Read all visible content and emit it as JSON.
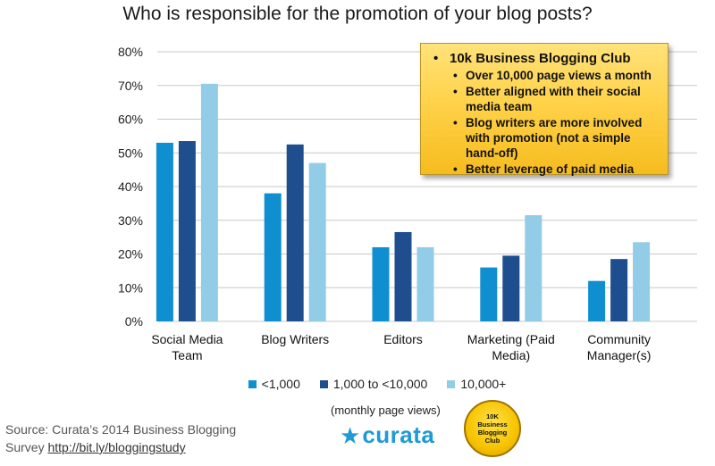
{
  "chart_data": {
    "type": "bar",
    "title": "Who is responsible for the promotion of your blog posts?",
    "xlabel": "",
    "ylabel": "",
    "ylim": [
      0,
      80
    ],
    "yticks": [
      "0%",
      "10%",
      "20%",
      "30%",
      "40%",
      "50%",
      "60%",
      "70%",
      "80%"
    ],
    "categories": [
      [
        "Social Media",
        "Team"
      ],
      [
        "Blog Writers"
      ],
      [
        "Editors"
      ],
      [
        "Marketing (Paid",
        "Media)"
      ],
      [
        "Community",
        "Manager(s)"
      ]
    ],
    "series": [
      {
        "name": "<1,000",
        "color": "#0f8fd0",
        "values": [
          53,
          38,
          22,
          16,
          12
        ]
      },
      {
        "name": "1,000 to <10,000",
        "color": "#1f4e8f",
        "values": [
          53.5,
          52.5,
          26.5,
          19.5,
          18.5
        ]
      },
      {
        "name": "10,000+",
        "color": "#93cce7",
        "values": [
          70.5,
          47,
          22,
          31.5,
          23.5
        ]
      }
    ],
    "grid": true,
    "legend": "bottom"
  },
  "callout": {
    "heading": "10k Business Blogging Club",
    "items": [
      "Over 10,000 page views a month",
      "Better aligned with their social media team",
      "Blog writers are more involved with promotion (not a simple hand-off)",
      "Better leverage of paid media"
    ]
  },
  "source": {
    "line1": "Source:  Curata’s 2014 Business Blogging",
    "line2_prefix": "Survey ",
    "link": "http://bit.ly/bloggingstudy"
  },
  "footer": {
    "monthly_note": "(monthly page views)",
    "logo_text": "curata",
    "badge_lines": [
      "10K",
      "Business",
      "Blogging",
      "Club"
    ]
  },
  "colors": {
    "accent": "#1e9ad6",
    "callout_bg": "#ffd24a"
  }
}
